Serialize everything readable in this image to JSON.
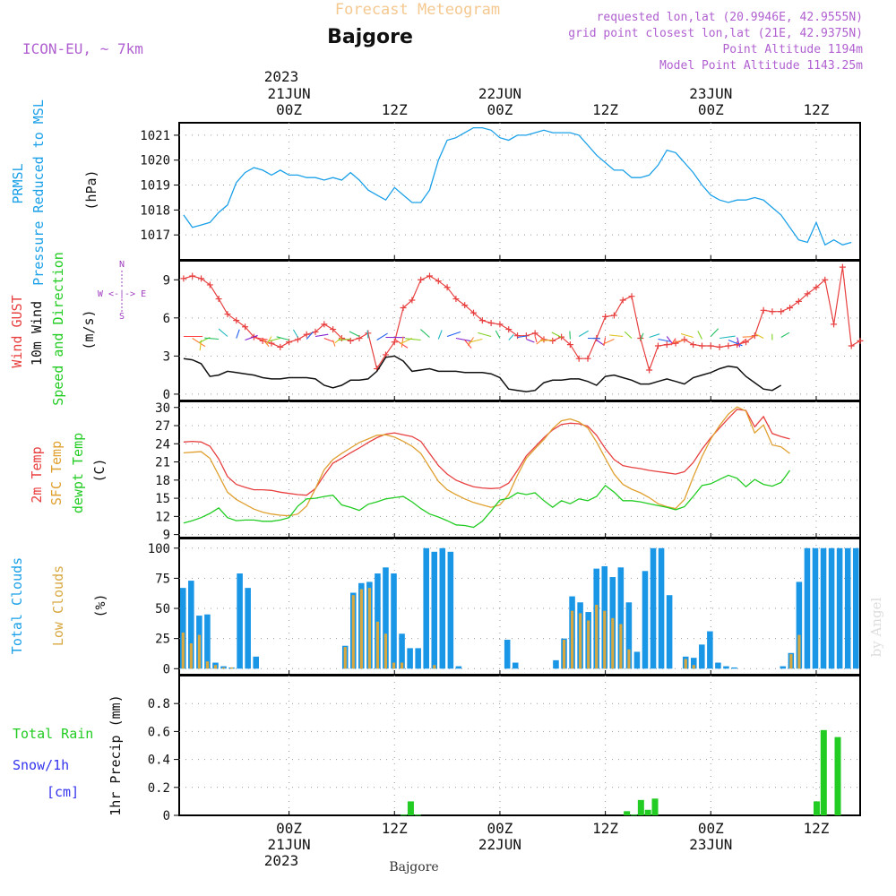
{
  "header": {
    "title": "Forecast Meteogram",
    "location": "Bajgore",
    "model": "ICON-EU, ~ 7km",
    "requested": "requested lon,lat (20.9946E, 42.9555N)",
    "grid_point": "grid point closest lon,lat (21E, 42.9375N)",
    "point_altitude": "Point Altitude 1194m",
    "model_altitude": "Model Point Altitude 1143.25m",
    "footer_location": "Bajgore",
    "watermark": "by Angel"
  },
  "colors": {
    "pressure": "#1aa0e8",
    "gust": "#e84040",
    "wind": "#111111",
    "temp": "#e84040",
    "sfc": "#e0a030",
    "dew": "#22cc22",
    "cloud_total": "#1a96e6",
    "cloud_low": "#d8a840",
    "rain": "#22cc22",
    "snow": "#3333ee",
    "compass": "#a040c0",
    "header_violet": "#b060d0",
    "header_title": "#f5c890"
  },
  "time_axis": {
    "top_year": "2023",
    "ticks": [
      {
        "t": 12,
        "label": "00Z",
        "date": "21JUN"
      },
      {
        "t": 24,
        "label": "12Z",
        "date": ""
      },
      {
        "t": 36,
        "label": "00Z",
        "date": "22JUN"
      },
      {
        "t": 48,
        "label": "12Z",
        "date": ""
      },
      {
        "t": 60,
        "label": "00Z",
        "date": "23JUN"
      },
      {
        "t": 72,
        "label": "12Z",
        "date": ""
      }
    ]
  },
  "panel_labels": {
    "pressure": [
      "PRMSL",
      "Pressure Reduced to MSL",
      "(hPa)"
    ],
    "wind": [
      "Wind GUST",
      "10m Wind",
      "Speed and Direction",
      "(m/s)"
    ],
    "compass": [
      "N",
      "S",
      "W <-|-> E"
    ],
    "temp": [
      "2m Temp",
      "SFC Temp",
      "dewpt Temp",
      "(C)"
    ],
    "cloud": [
      "Total Clouds",
      "Low Clouds",
      "(%)"
    ],
    "precip": [
      "Total  Rain",
      "Snow/1h",
      "[cm]",
      "1hr Precip (mm)"
    ]
  },
  "chart_data": [
    {
      "type": "line",
      "name": "pressure",
      "ylabel": "(hPa)",
      "ylim": [
        1016,
        1021.5
      ],
      "yticks": [
        1017,
        1018,
        1019,
        1020,
        1021
      ],
      "x_start": 0,
      "x_step": 1,
      "series": [
        {
          "name": "PRMSL",
          "values": [
            1017.8,
            1017.3,
            1017.4,
            1017.5,
            1017.9,
            1018.2,
            1019.1,
            1019.5,
            1019.7,
            1019.6,
            1019.4,
            1019.6,
            1019.4,
            1019.4,
            1019.3,
            1019.3,
            1019.2,
            1019.3,
            1019.2,
            1019.5,
            1019.2,
            1018.8,
            1018.6,
            1018.4,
            1018.9,
            1018.6,
            1018.3,
            1018.3,
            1018.8,
            1020.0,
            1020.8,
            1020.9,
            1021.1,
            1021.3,
            1021.3,
            1021.2,
            1020.9,
            1020.8,
            1021.0,
            1021.0,
            1021.1,
            1021.2,
            1021.1,
            1021.1,
            1021.1,
            1021.0,
            1020.6,
            1020.2,
            1019.9,
            1019.6,
            1019.6,
            1019.3,
            1019.3,
            1019.4,
            1019.8,
            1020.4,
            1020.3,
            1019.9,
            1019.5,
            1019.0,
            1018.6,
            1018.4,
            1018.3,
            1018.4,
            1018.4,
            1018.5,
            1018.4,
            1018.1,
            1017.8,
            1017.3,
            1016.8,
            1016.7,
            1017.5,
            1016.6,
            1016.8,
            1016.6,
            1016.7
          ]
        }
      ]
    },
    {
      "type": "line",
      "name": "wind",
      "ylabel": "(m/s)",
      "ylim": [
        -0.5,
        10.5
      ],
      "yticks": [
        0,
        3,
        6,
        9
      ],
      "x_start": 0,
      "x_step": 1,
      "series": [
        {
          "name": "Wind GUST",
          "values": [
            9.1,
            9.3,
            9.1,
            8.6,
            7.5,
            6.3,
            5.8,
            5.3,
            4.5,
            4.2,
            4.0,
            3.7,
            4.1,
            4.3,
            4.7,
            4.9,
            5.5,
            5.1,
            4.4,
            4.2,
            4.4,
            4.8,
            2.0,
            3.1,
            4.1,
            6.8,
            7.4,
            9.0,
            9.3,
            8.9,
            8.4,
            7.5,
            7.0,
            6.4,
            5.8,
            5.6,
            5.5,
            5.1,
            4.6,
            4.6,
            4.8,
            4.3,
            4.2,
            4.5,
            3.9,
            2.8,
            2.8,
            4.4,
            6.1,
            6.2,
            7.4,
            7.7,
            4.4,
            1.9,
            3.8,
            3.9,
            4.0,
            4.3,
            3.9,
            3.8,
            3.8,
            3.7,
            3.8,
            3.9,
            4.1,
            4.6,
            6.6,
            6.5,
            6.5,
            6.8,
            7.3,
            7.9,
            8.4,
            9.0,
            5.5,
            10.0,
            3.8,
            4.2
          ]
        },
        {
          "name": "10m Wind",
          "values": [
            2.8,
            2.7,
            2.4,
            1.4,
            1.5,
            1.8,
            1.7,
            1.6,
            1.5,
            1.3,
            1.2,
            1.2,
            1.3,
            1.3,
            1.3,
            1.2,
            0.7,
            0.5,
            0.7,
            1.1,
            1.1,
            1.2,
            1.8,
            2.9,
            3.0,
            2.6,
            1.8,
            1.9,
            2.0,
            1.8,
            1.8,
            1.8,
            1.7,
            1.7,
            1.7,
            1.6,
            1.3,
            0.4,
            0.3,
            0.2,
            0.3,
            0.9,
            1.1,
            1.1,
            1.2,
            1.2,
            1.0,
            0.7,
            1.4,
            1.5,
            1.3,
            1.1,
            0.8,
            0.8,
            1.0,
            1.2,
            1.0,
            0.8,
            1.3,
            1.5,
            1.7,
            2.0,
            2.2,
            2.1,
            1.4,
            0.9,
            0.4,
            0.3,
            0.7
          ]
        }
      ]
    },
    {
      "type": "line",
      "name": "temperature",
      "ylabel": "(C)",
      "ylim": [
        8.5,
        31
      ],
      "yticks": [
        9,
        12,
        15,
        18,
        21,
        24,
        27,
        30
      ],
      "x_start": 0,
      "x_step": 1,
      "series": [
        {
          "name": "2m Temp",
          "values": [
            24.3,
            24.4,
            24.3,
            23.6,
            21.5,
            18.6,
            17.3,
            16.8,
            16.4,
            16.4,
            16.3,
            16.0,
            15.8,
            15.6,
            15.5,
            16.6,
            18.8,
            20.8,
            21.6,
            22.5,
            23.3,
            24.2,
            25.0,
            25.6,
            25.8,
            25.5,
            25.2,
            24.4,
            22.4,
            20.4,
            19.0,
            18.0,
            17.4,
            16.9,
            16.7,
            16.6,
            16.7,
            17.5,
            19.6,
            22.0,
            23.5,
            25.0,
            26.3,
            27.2,
            27.4,
            27.3,
            26.9,
            25.4,
            23.2,
            21.4,
            20.4,
            20.1,
            19.9,
            19.6,
            19.4,
            19.2,
            19.0,
            19.4,
            20.9,
            23.1,
            25.0,
            26.6,
            28.2,
            29.7,
            29.5,
            26.8,
            28.5,
            25.7,
            25.2,
            24.8
          ]
        },
        {
          "name": "SFC Temp",
          "values": [
            22.5,
            22.6,
            22.7,
            21.6,
            18.8,
            16.0,
            14.8,
            14.0,
            13.2,
            12.7,
            12.4,
            12.2,
            12.1,
            12.4,
            13.7,
            16.6,
            19.7,
            21.4,
            22.4,
            23.3,
            24.2,
            24.8,
            25.4,
            25.5,
            25.1,
            24.4,
            23.6,
            22.4,
            20.1,
            17.8,
            16.4,
            15.6,
            14.9,
            14.3,
            13.9,
            13.5,
            13.9,
            15.6,
            18.8,
            21.6,
            23.2,
            24.7,
            26.5,
            27.8,
            28.1,
            27.6,
            26.6,
            24.3,
            21.6,
            19.0,
            17.3,
            16.5,
            15.9,
            15.1,
            14.1,
            13.6,
            13.3,
            14.8,
            18.5,
            21.9,
            24.8,
            27.0,
            28.9,
            30.1,
            29.4,
            25.8,
            27.1,
            23.8,
            23.5,
            22.4
          ]
        },
        {
          "name": "dewpt Temp",
          "values": [
            10.9,
            11.3,
            11.8,
            12.5,
            13.4,
            11.8,
            11.3,
            11.4,
            11.4,
            11.2,
            11.2,
            11.4,
            11.8,
            13.7,
            14.9,
            15.0,
            15.3,
            15.5,
            13.9,
            13.5,
            13.0,
            14.0,
            14.4,
            14.9,
            15.1,
            15.3,
            14.4,
            13.3,
            12.4,
            11.9,
            11.3,
            10.6,
            10.5,
            10.2,
            11.2,
            12.9,
            14.7,
            15.0,
            15.9,
            15.6,
            15.9,
            14.6,
            13.5,
            14.6,
            14.1,
            14.9,
            14.6,
            15.3,
            17.1,
            16.0,
            14.6,
            14.6,
            14.4,
            14.1,
            13.8,
            13.5,
            13.1,
            13.6,
            15.3,
            17.1,
            17.4,
            18.1,
            18.8,
            18.3,
            16.9,
            18.1,
            17.3,
            17.0,
            17.6,
            19.6
          ]
        }
      ]
    },
    {
      "type": "bar",
      "name": "clouds",
      "ylabel": "(%)",
      "ylim": [
        -5,
        108
      ],
      "yticks": [
        0,
        25,
        50,
        75,
        100
      ],
      "x_start": 0,
      "x_step": 1,
      "series": [
        {
          "name": "Total Clouds",
          "values": [
            67,
            73,
            44,
            45,
            5,
            2,
            1,
            79,
            67,
            10,
            0,
            0,
            0,
            0,
            0,
            0,
            0,
            0,
            0,
            0,
            19,
            63,
            71,
            72,
            79,
            84,
            79,
            29,
            17,
            17,
            100,
            97,
            100,
            97,
            2,
            0,
            0,
            0,
            0,
            0,
            24,
            5,
            0,
            0,
            0,
            0,
            7,
            25,
            60,
            55,
            47,
            83,
            85,
            76,
            84,
            55,
            14,
            81,
            100,
            100,
            61,
            0,
            10,
            9,
            20,
            31,
            5,
            2,
            1,
            0,
            0,
            0,
            0,
            0,
            2,
            13,
            72,
            100,
            100,
            100,
            100,
            100,
            100,
            100
          ]
        },
        {
          "name": "Low Clouds",
          "values": [
            30,
            21,
            28,
            6,
            3,
            1,
            1,
            0,
            0,
            0,
            0,
            0,
            0,
            0,
            0,
            0,
            0,
            0,
            0,
            0,
            18,
            61,
            66,
            67,
            39,
            29,
            5,
            5,
            0,
            0,
            0,
            3,
            0,
            0,
            0,
            0,
            0,
            0,
            0,
            0,
            0,
            0,
            0,
            0,
            0,
            0,
            0,
            24,
            48,
            46,
            40,
            53,
            48,
            42,
            37,
            16,
            0,
            0,
            0,
            0,
            0,
            0,
            8,
            3,
            0,
            0,
            0,
            0,
            0,
            0,
            0,
            0,
            0,
            0,
            0,
            12,
            28,
            0,
            0,
            0,
            0,
            0,
            0,
            0
          ]
        }
      ]
    },
    {
      "type": "bar",
      "name": "precipitation",
      "ylabel": "1hr Precip (mm)",
      "ylim": [
        0,
        1.0
      ],
      "yticks": [
        0,
        0.2,
        0.4,
        0.6,
        0.8
      ],
      "series": [
        {
          "name": "Total Rain",
          "bars": [
            [
              25.0,
              0.005
            ],
            [
              25.8,
              0.1
            ],
            [
              26.6,
              0.005
            ],
            [
              50.4,
              0.03
            ],
            [
              51.2,
              0.005
            ],
            [
              52.0,
              0.11
            ],
            [
              52.8,
              0.04
            ],
            [
              53.6,
              0.12
            ],
            [
              72.0,
              0.1
            ],
            [
              72.8,
              0.61
            ],
            [
              74.4,
              0.56
            ]
          ]
        }
      ]
    }
  ]
}
